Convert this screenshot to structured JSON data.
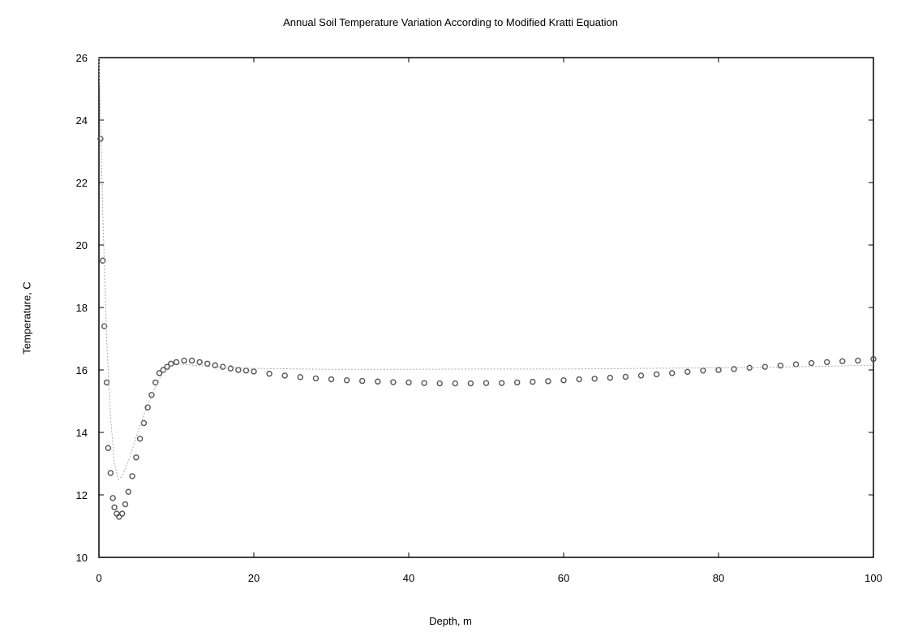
{
  "chart_data": {
    "type": "scatter",
    "title": "Annual Soil Temperature Variation According to Modified Kratti Equation",
    "xlabel": "Depth, m",
    "ylabel": "Temperature, C",
    "xlim": [
      0,
      100
    ],
    "ylim": [
      10,
      26
    ],
    "xticks": [
      "0",
      "20",
      "40",
      "60",
      "80",
      "100"
    ],
    "yticks": [
      "10",
      "12",
      "14",
      "16",
      "18",
      "20",
      "22",
      "24",
      "26"
    ],
    "grid": false,
    "legend": "none",
    "series": [
      {
        "color": "#555555",
        "marker": "circle",
        "points": [
          [
            0.2,
            23.4
          ],
          [
            0.5,
            19.5
          ],
          [
            0.7,
            17.4
          ],
          [
            1.0,
            15.6
          ],
          [
            1.2,
            13.5
          ],
          [
            1.5,
            12.7
          ],
          [
            1.8,
            11.9
          ],
          [
            2.0,
            11.6
          ],
          [
            2.3,
            11.4
          ],
          [
            2.6,
            11.3
          ],
          [
            3.0,
            11.4
          ],
          [
            3.4,
            11.7
          ],
          [
            3.8,
            12.1
          ],
          [
            4.3,
            12.6
          ],
          [
            4.8,
            13.2
          ],
          [
            5.3,
            13.8
          ],
          [
            5.8,
            14.3
          ],
          [
            6.3,
            14.8
          ],
          [
            6.8,
            15.2
          ],
          [
            7.3,
            15.6
          ],
          [
            7.8,
            15.9
          ],
          [
            8.3,
            16.0
          ],
          [
            8.8,
            16.1
          ],
          [
            9.3,
            16.2
          ],
          [
            10.0,
            16.25
          ],
          [
            11.0,
            16.3
          ],
          [
            12.0,
            16.3
          ],
          [
            13.0,
            16.25
          ],
          [
            14.0,
            16.2
          ],
          [
            15.0,
            16.15
          ],
          [
            16.0,
            16.1
          ],
          [
            17.0,
            16.05
          ],
          [
            18.0,
            16.0
          ],
          [
            19.0,
            15.98
          ],
          [
            20.0,
            15.95
          ],
          [
            22.0,
            15.88
          ],
          [
            24.0,
            15.82
          ],
          [
            26.0,
            15.77
          ],
          [
            28.0,
            15.73
          ],
          [
            30.0,
            15.7
          ],
          [
            32.0,
            15.67
          ],
          [
            34.0,
            15.65
          ],
          [
            36.0,
            15.63
          ],
          [
            38.0,
            15.61
          ],
          [
            40.0,
            15.6
          ],
          [
            42.0,
            15.58
          ],
          [
            44.0,
            15.57
          ],
          [
            46.0,
            15.57
          ],
          [
            48.0,
            15.57
          ],
          [
            50.0,
            15.58
          ],
          [
            52.0,
            15.58
          ],
          [
            54.0,
            15.6
          ],
          [
            56.0,
            15.62
          ],
          [
            58.0,
            15.64
          ],
          [
            60.0,
            15.67
          ],
          [
            62.0,
            15.7
          ],
          [
            64.0,
            15.72
          ],
          [
            66.0,
            15.75
          ],
          [
            68.0,
            15.78
          ],
          [
            70.0,
            15.82
          ],
          [
            72.0,
            15.86
          ],
          [
            74.0,
            15.9
          ],
          [
            76.0,
            15.94
          ],
          [
            78.0,
            15.98
          ],
          [
            80.0,
            16.0
          ],
          [
            82.0,
            16.03
          ],
          [
            84.0,
            16.07
          ],
          [
            86.0,
            16.1
          ],
          [
            88.0,
            16.14
          ],
          [
            90.0,
            16.18
          ],
          [
            92.0,
            16.22
          ],
          [
            94.0,
            16.25
          ],
          [
            96.0,
            16.28
          ],
          [
            98.0,
            16.3
          ],
          [
            100.0,
            16.35
          ]
        ]
      },
      {
        "color": "#aaaaaa",
        "marker": "line",
        "points": [
          [
            0.0,
            26.0
          ],
          [
            0.5,
            21.0
          ],
          [
            1.0,
            17.0
          ],
          [
            1.5,
            14.5
          ],
          [
            2.0,
            13.0
          ],
          [
            2.5,
            12.5
          ],
          [
            3.0,
            12.6
          ],
          [
            4.0,
            13.2
          ],
          [
            5.0,
            14.0
          ],
          [
            6.0,
            14.7
          ],
          [
            7.0,
            15.3
          ],
          [
            8.0,
            15.8
          ],
          [
            9.0,
            16.1
          ],
          [
            10.0,
            16.2
          ],
          [
            12.0,
            16.15
          ],
          [
            15.0,
            16.1
          ],
          [
            20.0,
            16.05
          ],
          [
            30.0,
            16.02
          ],
          [
            40.0,
            16.02
          ],
          [
            50.0,
            16.03
          ],
          [
            60.0,
            16.03
          ],
          [
            70.0,
            16.05
          ],
          [
            80.0,
            16.07
          ],
          [
            90.0,
            16.1
          ],
          [
            100.0,
            16.15
          ]
        ]
      }
    ]
  }
}
